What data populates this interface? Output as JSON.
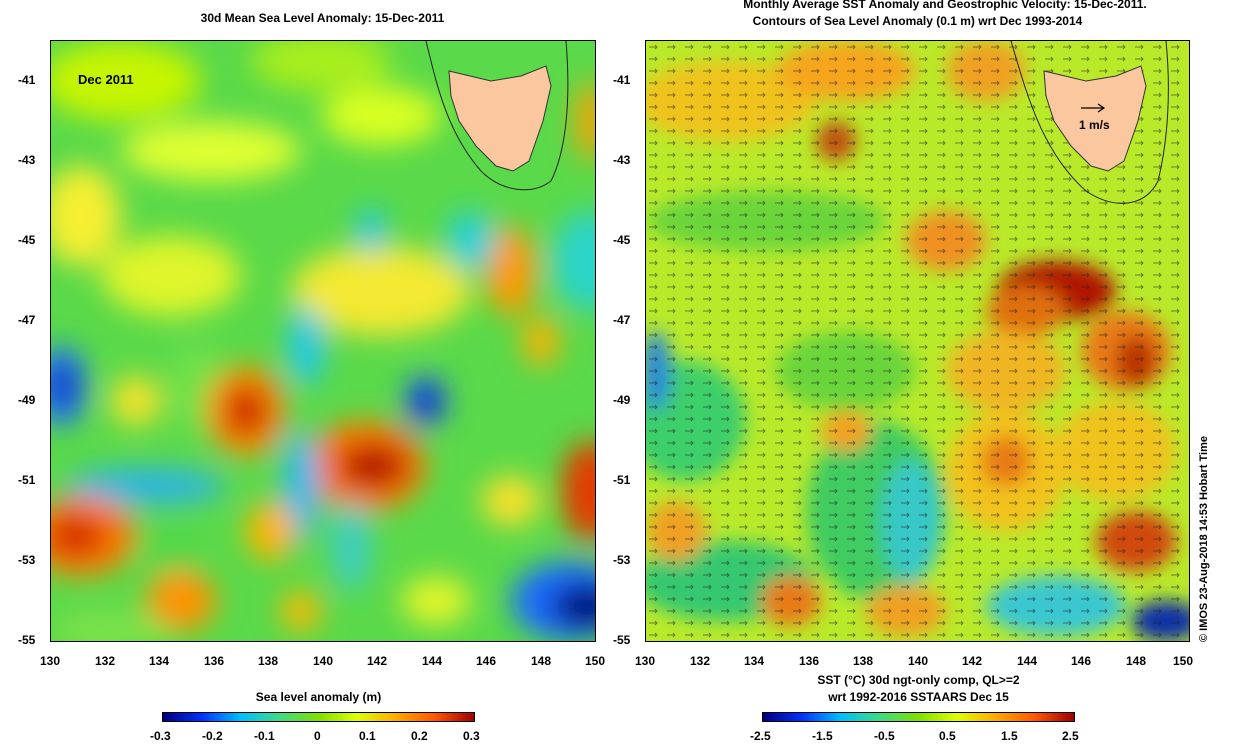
{
  "left_panel": {
    "title": "30d Mean Sea Level Anomaly: 15-Dec-2011",
    "inset_label": "Dec 2011",
    "colorbar_title": "Sea level anomaly (m)",
    "colorbar_ticks": [
      "-0.3",
      "-0.2",
      "-0.1",
      "0",
      "0.1",
      "0.2",
      "0.3"
    ]
  },
  "right_panel": {
    "title_line1": "Monthly Average SST Anomaly  and Geostrophic Velocity: 15-Dec-2011.",
    "title_line2": "Contours of Sea Level Anomaly (0.1 m) wrt Dec 1993-2014",
    "velocity_scale_label": "1 m/s",
    "colorbar_title_line1": "SST (°C) 30d ngt-only comp, QL>=2",
    "colorbar_title_line2": "wrt 1992-2016 SSTAARS Dec 15",
    "colorbar_ticks": [
      "-2.5",
      "-1.5",
      "-0.5",
      "0.5",
      "1.5",
      "2.5"
    ]
  },
  "axes": {
    "lat_labels": [
      "-41",
      "-43",
      "-45",
      "-47",
      "-49",
      "-51",
      "-53",
      "-55"
    ],
    "lon_labels": [
      "130",
      "132",
      "134",
      "136",
      "138",
      "140",
      "142",
      "144",
      "146",
      "148",
      "150"
    ]
  },
  "credit": "© IMOS 23-Aug-2018 14:53 Hobart Time",
  "colors": {
    "land": "#fbc79e",
    "anomaly_ramp": [
      "#00007f",
      "#0032ff",
      "#00bfff",
      "#3ddc84",
      "#7fe000",
      "#dfff00",
      "#ffaa00",
      "#ff5500",
      "#a00000"
    ]
  }
}
